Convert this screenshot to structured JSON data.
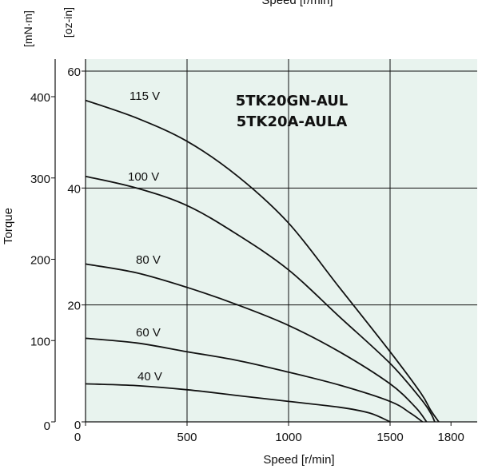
{
  "chart_data": {
    "type": "line",
    "title_lines": [
      "5TK20GN-AUL",
      "5TK20A-AULA"
    ],
    "xlabel": "Speed [r/min]",
    "xlabel_top": "Speed [r/min]",
    "ylabel": "Torque",
    "y_unit_left": "[mN·m]",
    "y_unit_right": "[oz-in]",
    "xlim": [
      0,
      1800
    ],
    "ylim": [
      0,
      60
    ],
    "x_ticks": [
      {
        "value": 0,
        "label": "0"
      },
      {
        "value": 500,
        "label": "500"
      },
      {
        "value": 1000,
        "label": "1000"
      },
      {
        "value": 1500,
        "label": "1500"
      },
      {
        "value": 1800,
        "label": "1800"
      }
    ],
    "y_ticks_ozin": [
      {
        "value": 0,
        "label": "0"
      },
      {
        "value": 20,
        "label": "20"
      },
      {
        "value": 40,
        "label": "40"
      },
      {
        "value": 60,
        "label": "60"
      }
    ],
    "y_ticks_mNm": [
      {
        "value": 0,
        "label": "0"
      },
      {
        "value": 100,
        "label": "100"
      },
      {
        "value": 200,
        "label": "200"
      },
      {
        "value": 300,
        "label": "300"
      },
      {
        "value": 400,
        "label": "400"
      }
    ],
    "grid": true,
    "background_color": "#e8f3ee",
    "line_color": "#111111",
    "series": [
      {
        "name": "115 V",
        "x": [
          0,
          250,
          500,
          750,
          1000,
          1250,
          1500,
          1650,
          1700,
          1740
        ],
        "y": [
          55,
          52,
          48,
          42,
          34,
          23,
          12,
          5,
          2,
          0
        ]
      },
      {
        "name": "100 V",
        "x": [
          0,
          250,
          500,
          750,
          1000,
          1250,
          1500,
          1650,
          1700,
          1720
        ],
        "y": [
          42,
          40,
          37,
          32,
          26,
          18,
          10,
          4,
          1.5,
          0
        ]
      },
      {
        "name": "80 V",
        "x": [
          0,
          250,
          500,
          750,
          1000,
          1250,
          1500,
          1625,
          1680
        ],
        "y": [
          27,
          25.5,
          23,
          20,
          16.5,
          12,
          6.5,
          2.5,
          0
        ]
      },
      {
        "name": "60 V",
        "x": [
          0,
          250,
          500,
          750,
          1000,
          1250,
          1500,
          1600,
          1660
        ],
        "y": [
          14.3,
          13.5,
          12,
          10.5,
          8.5,
          6.3,
          3.5,
          1.5,
          0
        ]
      },
      {
        "name": "40 V",
        "x": [
          0,
          250,
          500,
          750,
          1000,
          1250,
          1400,
          1500
        ],
        "y": [
          6.5,
          6.2,
          5.5,
          4.5,
          3.5,
          2.5,
          1.5,
          0
        ]
      }
    ]
  }
}
